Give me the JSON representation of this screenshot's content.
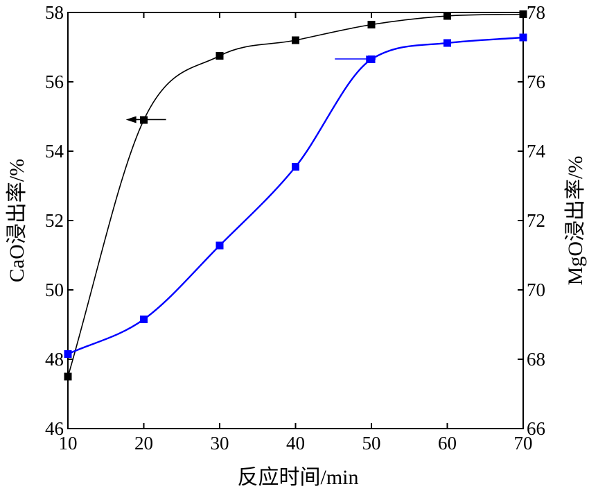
{
  "chart_data": {
    "type": "line",
    "title": "",
    "xlabel": "反应时间/min",
    "ylabel": "CaO浸出率/%",
    "y2label": "MgO浸出率/%",
    "x": [
      10,
      20,
      30,
      40,
      50,
      60,
      70
    ],
    "xlim": [
      10,
      70
    ],
    "ylim": [
      46,
      58
    ],
    "y2lim": [
      66,
      78
    ],
    "xticks": [
      "10",
      "20",
      "30",
      "40",
      "50",
      "60",
      "70"
    ],
    "yticks": [
      "46",
      "48",
      "50",
      "52",
      "54",
      "56",
      "58"
    ],
    "y2ticks": [
      "66",
      "68",
      "70",
      "72",
      "74",
      "76",
      "78"
    ],
    "grid": false,
    "legend": "none",
    "series": [
      {
        "values": [
          47.5,
          54.9,
          56.75,
          57.2,
          57.65,
          57.9,
          57.95
        ],
        "axis": "left",
        "color": "#000000",
        "marker": "square"
      },
      {
        "values": [
          68.15,
          69.15,
          71.28,
          73.55,
          76.65,
          77.12,
          77.28
        ],
        "axis": "right",
        "color": "#0000ff",
        "marker": "square"
      }
    ],
    "annotations": [
      {
        "type": "arrow",
        "direction": "left",
        "series": 0,
        "color": "#000000"
      },
      {
        "type": "arrow",
        "direction": "right",
        "series": 1,
        "color": "#0000ff"
      }
    ]
  }
}
